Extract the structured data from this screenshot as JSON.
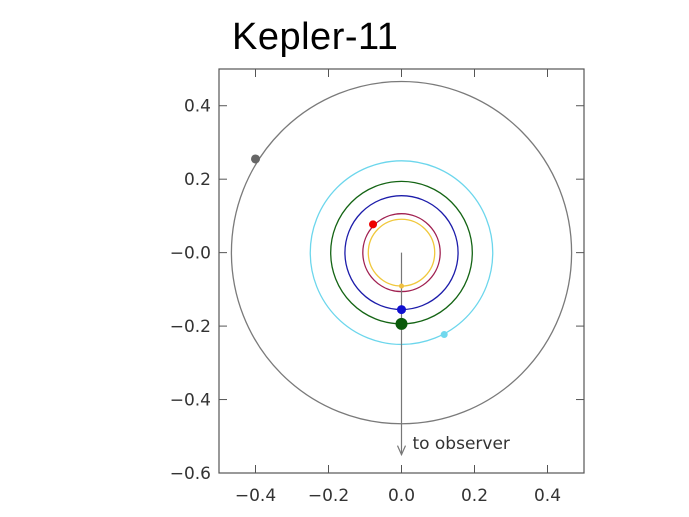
{
  "chart_data": {
    "type": "scatter",
    "title": "Kepler-11",
    "xlabel": "",
    "ylabel": "",
    "xlim": [
      -0.5,
      0.5
    ],
    "ylim": [
      -0.6,
      0.5
    ],
    "x_ticks": [
      -0.4,
      -0.2,
      0.0,
      0.2,
      0.4
    ],
    "x_tick_labels": [
      "−0.4",
      "−0.2",
      "0.0",
      "0.2",
      "0.4"
    ],
    "y_ticks": [
      0.4,
      0.2,
      0.0,
      -0.2,
      -0.4,
      -0.6
    ],
    "y_tick_labels": [
      "0.4",
      "0.2",
      "−0.0",
      "−0.2",
      "−0.4",
      "−0.6"
    ],
    "grid": false,
    "orbits": [
      {
        "radius": 0.091,
        "color": "#f0c83c",
        "planet": {
          "x": 0.0,
          "y": -0.091
        },
        "planet_size": 2.5
      },
      {
        "radius": 0.106,
        "color": "#a02050",
        "planet": {
          "x": -0.078,
          "y": 0.077
        },
        "planet_size": 4
      },
      {
        "radius": 0.155,
        "color": "#1c1caa",
        "planet": {
          "x": 0.0,
          "y": -0.155
        },
        "planet_size": 4.5
      },
      {
        "radius": 0.194,
        "color": "#146414",
        "planet": {
          "x": 0.0,
          "y": -0.194
        },
        "planet_size": 6
      },
      {
        "radius": 0.25,
        "color": "#6cd6ec",
        "planet": {
          "x": 0.117,
          "y": -0.223
        },
        "planet_size": 3.5
      },
      {
        "radius": 0.466,
        "color": "#7a7a7a",
        "planet": {
          "x": -0.4,
          "y": 0.255
        },
        "planet_size": 4.5
      }
    ],
    "planet_colors": [
      "#f0c040",
      "#ee0000",
      "#1010d0",
      "#0a5a0a",
      "#70d8ee",
      "#666666"
    ],
    "observer_arrow": {
      "from": [
        0.0,
        0.0
      ],
      "to": [
        0.0,
        -0.55
      ],
      "color": "#777777"
    },
    "annotation": {
      "text": "to observer",
      "x": 0.03,
      "y": -0.535
    }
  }
}
